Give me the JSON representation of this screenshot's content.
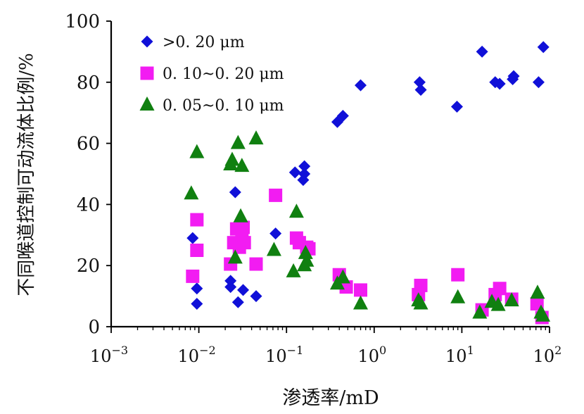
{
  "chart_data": {
    "type": "scatter",
    "title": "",
    "xlabel": "渗透率/mD",
    "ylabel": "不同喉道控制可动流体比例/%",
    "xscale": "log",
    "xlim": [
      0.001,
      100
    ],
    "ylim": [
      0,
      100
    ],
    "x_ticks": [
      {
        "base": "10",
        "exp": "−3"
      },
      {
        "base": "10",
        "exp": "−2"
      },
      {
        "base": "10",
        "exp": "−1"
      },
      {
        "base": "10",
        "exp": "0"
      },
      {
        "base": "10",
        "exp": "1"
      },
      {
        "base": "10",
        "exp": "2"
      }
    ],
    "y_ticks": [
      "0",
      "20",
      "40",
      "60",
      "80",
      "100"
    ],
    "legend_position": "top-left",
    "series": [
      {
        "name": ">0. 20 μm",
        "marker": "diamond",
        "color": "#1010d8",
        "points": [
          [
            0.0085,
            29
          ],
          [
            0.0095,
            12.5
          ],
          [
            0.0095,
            7.5
          ],
          [
            0.023,
            15
          ],
          [
            0.023,
            13
          ],
          [
            0.026,
            44
          ],
          [
            0.028,
            8
          ],
          [
            0.032,
            12
          ],
          [
            0.045,
            10
          ],
          [
            0.075,
            30.5
          ],
          [
            0.125,
            50.5
          ],
          [
            0.155,
            48
          ],
          [
            0.16,
            50
          ],
          [
            0.16,
            52.5
          ],
          [
            0.38,
            67
          ],
          [
            0.44,
            69
          ],
          [
            0.7,
            79
          ],
          [
            3.3,
            80
          ],
          [
            3.4,
            77.5
          ],
          [
            8.8,
            72
          ],
          [
            17,
            90
          ],
          [
            24,
            80
          ],
          [
            27,
            79.5
          ],
          [
            38,
            81
          ],
          [
            39,
            82
          ],
          [
            75,
            80
          ],
          [
            85,
            91.5
          ]
        ]
      },
      {
        "name": "0. 10~0. 20 μm",
        "marker": "square",
        "color": "#f21cf2",
        "points": [
          [
            0.0085,
            16.5
          ],
          [
            0.0095,
            25
          ],
          [
            0.0095,
            35
          ],
          [
            0.023,
            20.5
          ],
          [
            0.025,
            27.5
          ],
          [
            0.027,
            32
          ],
          [
            0.029,
            26
          ],
          [
            0.031,
            30
          ],
          [
            0.032,
            32.5
          ],
          [
            0.033,
            27.5
          ],
          [
            0.045,
            20.5
          ],
          [
            0.075,
            43
          ],
          [
            0.13,
            29
          ],
          [
            0.14,
            27.5
          ],
          [
            0.17,
            26
          ],
          [
            0.18,
            25.5
          ],
          [
            0.4,
            17
          ],
          [
            0.48,
            13
          ],
          [
            0.7,
            12
          ],
          [
            3.2,
            10.5
          ],
          [
            3.4,
            13.5
          ],
          [
            9,
            17
          ],
          [
            17,
            5.5
          ],
          [
            24,
            10.5
          ],
          [
            27,
            12.5
          ],
          [
            37,
            9
          ],
          [
            72,
            7.5
          ],
          [
            82,
            3
          ]
        ]
      },
      {
        "name": "0. 05~0. 10 μm",
        "marker": "triangle",
        "color": "#108010",
        "points": [
          [
            0.0082,
            43.5
          ],
          [
            0.0095,
            57
          ],
          [
            0.023,
            53
          ],
          [
            0.024,
            54.5
          ],
          [
            0.026,
            22.5
          ],
          [
            0.028,
            60
          ],
          [
            0.03,
            36
          ],
          [
            0.031,
            52.5
          ],
          [
            0.045,
            61.5
          ],
          [
            0.072,
            25
          ],
          [
            0.12,
            18
          ],
          [
            0.13,
            37.5
          ],
          [
            0.16,
            20
          ],
          [
            0.165,
            24
          ],
          [
            0.17,
            21.5
          ],
          [
            0.38,
            14
          ],
          [
            0.44,
            16
          ],
          [
            0.7,
            7.5
          ],
          [
            3.2,
            8.5
          ],
          [
            3.4,
            7.5
          ],
          [
            9,
            9.5
          ],
          [
            16,
            4.5
          ],
          [
            22,
            8
          ],
          [
            26,
            7
          ],
          [
            37,
            8.5
          ],
          [
            73,
            11
          ],
          [
            80,
            4.5
          ],
          [
            84,
            3.5
          ]
        ]
      }
    ]
  }
}
